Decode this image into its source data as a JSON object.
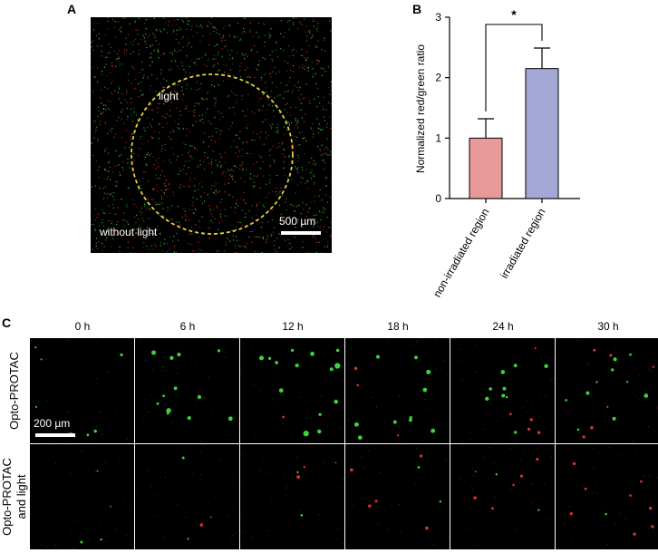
{
  "panel_a": {
    "letter": "A",
    "inside_label": "light",
    "outside_label": "without light",
    "scale_label": "500 µm"
  },
  "panel_b": {
    "letter": "B"
  },
  "panel_c": {
    "letter": "C",
    "times": [
      "0 h",
      "6 h",
      "12 h",
      "18 h",
      "24 h",
      "30 h"
    ],
    "rows": [
      {
        "label_lines": [
          "Opto-PROTAC"
        ]
      },
      {
        "label_lines": [
          "Opto-PROTAC",
          "and light"
        ]
      }
    ],
    "scale_label": "200 µm"
  },
  "colors": {
    "bar_nonirradiated": "#e8999a",
    "bar_irradiated": "#a3a8d6",
    "dashed_circle": "#e8d23a",
    "fluor_red": "#e0302a",
    "fluor_green": "#3ed23a"
  },
  "chart_data": {
    "type": "bar",
    "categories": [
      "non-irradiated region",
      "irradiated region"
    ],
    "values": [
      1.0,
      2.15
    ],
    "error_upper": [
      0.32,
      0.34
    ],
    "ylabel": "Normalized red/green ratio",
    "xlabel": "",
    "ylim": [
      0,
      3
    ],
    "yticks": [
      0,
      1,
      2,
      3
    ],
    "significance": {
      "between": [
        0,
        1
      ],
      "label": "*"
    },
    "grid": false
  }
}
